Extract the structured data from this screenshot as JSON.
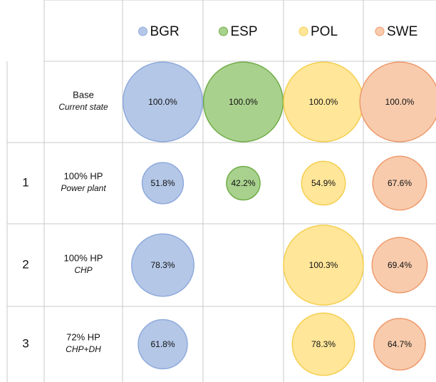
{
  "chart_data": {
    "type": "bubble_grid",
    "rows": [
      {
        "id": null,
        "label": "Base",
        "sublabel": "Current state"
      },
      {
        "id": 1,
        "label": "100% HP",
        "sublabel": "Power plant"
      },
      {
        "id": 2,
        "label": "100% HP",
        "sublabel": "CHP"
      },
      {
        "id": 3,
        "label": "72% HP",
        "sublabel": "CHP+DH"
      }
    ],
    "series": [
      {
        "name": "BGR",
        "color": "#b4c7e7",
        "stroke": "#8faadc",
        "values": [
          100.0,
          51.8,
          78.3,
          61.8
        ],
        "value_labels": [
          "100.0%",
          "51.8%",
          "78.3%",
          "61.8%"
        ]
      },
      {
        "name": "ESP",
        "color": "#a9d18e",
        "stroke": "#70ad47",
        "values": [
          100.0,
          42.2,
          null,
          null
        ],
        "value_labels": [
          "100.0%",
          "42.2%",
          null,
          null
        ]
      },
      {
        "name": "POL",
        "color": "#ffe699",
        "stroke": "#f5cf4f",
        "values": [
          100.0,
          54.9,
          100.3,
          78.3
        ],
        "value_labels": [
          "100.0%",
          "54.9%",
          "100.3%",
          "78.3%"
        ]
      },
      {
        "name": "SWE",
        "color": "#f8cbad",
        "stroke": "#ee9a6b",
        "values": [
          100.0,
          67.6,
          69.4,
          64.7
        ],
        "value_labels": [
          "100.0%",
          "67.6%",
          "69.4%",
          "64.7%"
        ]
      }
    ]
  }
}
